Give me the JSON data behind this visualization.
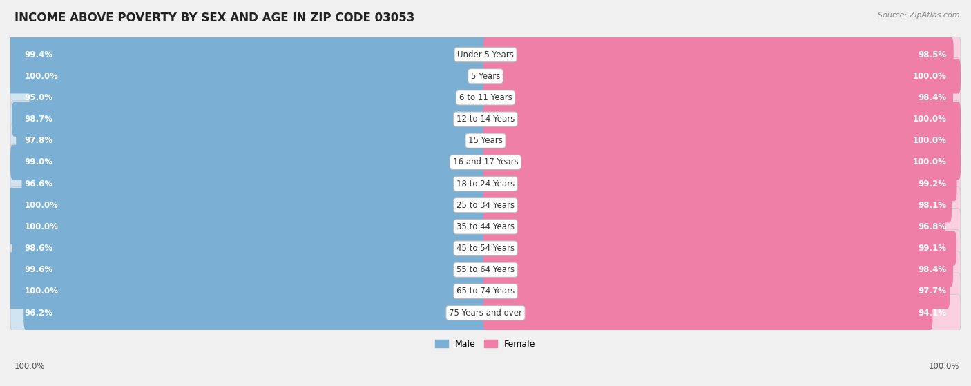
{
  "title": "INCOME ABOVE POVERTY BY SEX AND AGE IN ZIP CODE 03053",
  "source": "Source: ZipAtlas.com",
  "categories": [
    "Under 5 Years",
    "5 Years",
    "6 to 11 Years",
    "12 to 14 Years",
    "15 Years",
    "16 and 17 Years",
    "18 to 24 Years",
    "25 to 34 Years",
    "35 to 44 Years",
    "45 to 54 Years",
    "55 to 64 Years",
    "65 to 74 Years",
    "75 Years and over"
  ],
  "male_values": [
    99.4,
    100.0,
    95.0,
    98.7,
    97.8,
    99.0,
    96.6,
    100.0,
    100.0,
    98.6,
    99.6,
    100.0,
    96.2
  ],
  "female_values": [
    98.5,
    100.0,
    98.4,
    100.0,
    100.0,
    100.0,
    99.2,
    98.1,
    96.8,
    99.1,
    98.4,
    97.7,
    94.1
  ],
  "male_color": "#7bafd4",
  "female_color": "#f07fa8",
  "male_track_color": "#d0e4f2",
  "female_track_color": "#fad0e0",
  "male_label": "Male",
  "female_label": "Female",
  "bg_color": "#f0f0f0",
  "row_bg_color": "#ffffff",
  "title_fontsize": 12,
  "label_fontsize": 8.5,
  "source_fontsize": 8,
  "category_fontsize": 8.5,
  "legend_fontsize": 9,
  "x_axis_label_left": "100.0%",
  "x_axis_label_right": "100.0%"
}
